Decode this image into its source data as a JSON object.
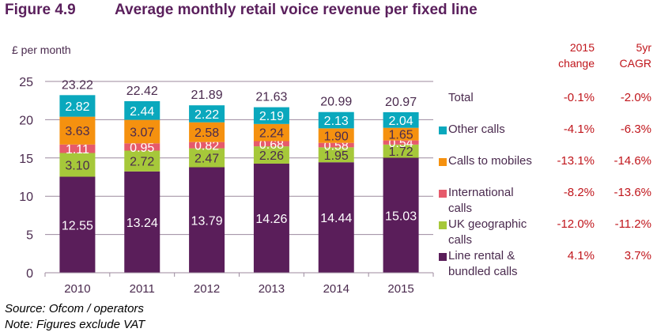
{
  "figure": {
    "number": "Figure 4.9",
    "title": "Average monthly retail voice revenue per fixed line"
  },
  "unit_label": "£ per month",
  "table_headers": {
    "change_line1": "2015",
    "change_line2": "change",
    "cagr_line1": "5yr",
    "cagr_line2": "CAGR"
  },
  "legend": [
    {
      "key": "total",
      "label_line1": "Total",
      "label_line2": "",
      "change": "-0.1%",
      "cagr": "-2.0%",
      "color": ""
    },
    {
      "key": "other",
      "label_line1": "Other calls",
      "label_line2": "",
      "change": "-4.1%",
      "cagr": "-6.3%",
      "color": "#0aa8bd"
    },
    {
      "key": "mobiles",
      "label_line1": "Calls to mobiles",
      "label_line2": "",
      "change": "-13.1%",
      "cagr": "-14.6%",
      "color": "#f5910f"
    },
    {
      "key": "international",
      "label_line1": "International",
      "label_line2": "calls",
      "change": "-8.2%",
      "cagr": "-13.6%",
      "color": "#e65a6b"
    },
    {
      "key": "ukgeo",
      "label_line1": "UK geographic",
      "label_line2": "calls",
      "change": "-12.0%",
      "cagr": "-11.2%",
      "color": "#a6c83a"
    },
    {
      "key": "line",
      "label_line1": "Line rental &",
      "label_line2": "bundled calls",
      "change": "4.1%",
      "cagr": "3.7%",
      "color": "#5a1e5a"
    }
  ],
  "chart_data": {
    "type": "bar",
    "stacked": true,
    "title": "Average monthly retail voice revenue per fixed line",
    "xlabel": "",
    "ylabel": "£ per month",
    "ylim": [
      0,
      25
    ],
    "yticks": [
      0,
      5,
      10,
      15,
      20,
      25
    ],
    "grid": true,
    "legend_position": "right",
    "categories": [
      "2010",
      "2011",
      "2012",
      "2013",
      "2014",
      "2015"
    ],
    "series": [
      {
        "name": "Line rental & bundled calls",
        "color": "#5a1e5a",
        "label_color": "#ffffff",
        "values": [
          12.55,
          13.24,
          13.79,
          14.26,
          14.44,
          15.03
        ]
      },
      {
        "name": "UK geographic calls",
        "color": "#a6c83a",
        "label_color": "#4a2a4e",
        "values": [
          3.1,
          2.72,
          2.47,
          2.26,
          1.95,
          1.72
        ]
      },
      {
        "name": "International calls",
        "color": "#e65a6b",
        "label_color": "#ffffff",
        "values": [
          1.11,
          0.95,
          0.82,
          0.68,
          0.58,
          0.54
        ]
      },
      {
        "name": "Calls to mobiles",
        "color": "#f5910f",
        "label_color": "#4a2a4e",
        "values": [
          3.63,
          3.07,
          2.58,
          2.24,
          1.9,
          1.65
        ]
      },
      {
        "name": "Other calls",
        "color": "#0aa8bd",
        "label_color": "#ffffff",
        "values": [
          2.82,
          2.44,
          2.22,
          2.19,
          2.13,
          2.04
        ]
      }
    ],
    "totals": [
      23.22,
      22.42,
      21.89,
      21.63,
      20.99,
      20.97
    ]
  },
  "footer": {
    "source": "Source: Ofcom / operators",
    "note": "Note: Figures exclude VAT"
  }
}
